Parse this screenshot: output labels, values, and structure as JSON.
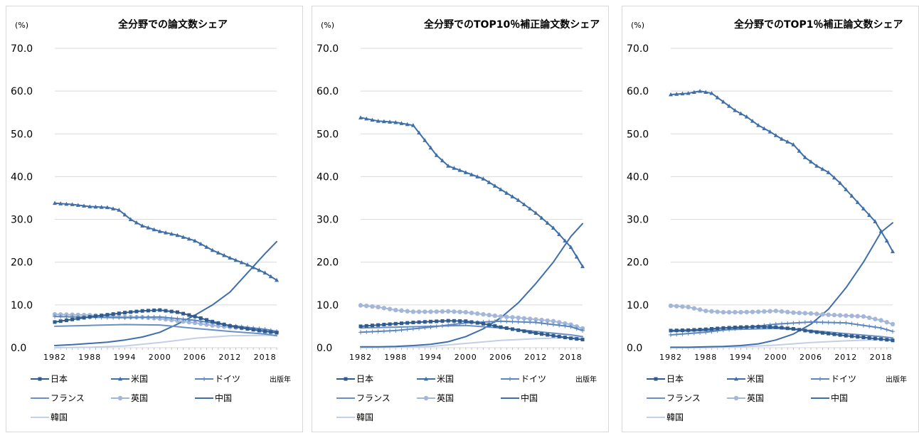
{
  "colors": {
    "japan": "#2f5b8e",
    "usa": "#3e6fa8",
    "germany": "#5a86c0",
    "france": "#6a8fc4",
    "uk": "#a4b7d8",
    "china": "#3f6eab",
    "korea": "#c3cfe6",
    "grid": "#d9d9d9"
  },
  "chart_data": [
    {
      "type": "line",
      "title": "全分野での論文数シェア",
      "unit_label": "(%)",
      "xlabel": "出版年",
      "x_ticks": [
        "1982",
        "1988",
        "1994",
        "2000",
        "2006",
        "2012",
        "2018"
      ],
      "y_ticks": [
        "70.0",
        "60.0",
        "50.0",
        "40.0",
        "30.0",
        "20.0",
        "10.0",
        "0.0"
      ],
      "xlim": [
        1982,
        2020
      ],
      "ylim": [
        0,
        70
      ],
      "legend": [
        "日本",
        "米国",
        "ドイツ",
        "フランス",
        "英国",
        "中国",
        "韓国"
      ],
      "series": [
        {
          "name": "日本",
          "key": "japan",
          "marker": "square",
          "x": [
            1982,
            1985,
            1988,
            1991,
            1994,
            1997,
            2000,
            2003,
            2006,
            2009,
            2012,
            2015,
            2018,
            2020
          ],
          "values": [
            6.0,
            6.6,
            7.2,
            7.7,
            8.2,
            8.6,
            8.8,
            8.3,
            7.3,
            6.1,
            5.1,
            4.4,
            3.8,
            3.5
          ]
        },
        {
          "name": "米国",
          "key": "usa",
          "marker": "triangle",
          "x": [
            1982,
            1985,
            1988,
            1991,
            1993,
            1995,
            1997,
            2000,
            2003,
            2006,
            2009,
            2012,
            2015,
            2018,
            2020
          ],
          "values": [
            33.8,
            33.5,
            33.0,
            32.8,
            32.2,
            30.0,
            28.5,
            27.2,
            26.3,
            25.0,
            22.8,
            21.0,
            19.4,
            17.5,
            15.8
          ]
        },
        {
          "name": "ドイツ",
          "key": "germany",
          "marker": "plus",
          "x": [
            1982,
            1988,
            1994,
            2000,
            2006,
            2012,
            2018,
            2020
          ],
          "values": [
            7.3,
            7.1,
            7.0,
            7.2,
            6.4,
            5.2,
            4.3,
            3.8
          ]
        },
        {
          "name": "フランス",
          "key": "france",
          "marker": "none",
          "x": [
            1982,
            1988,
            1994,
            2000,
            2006,
            2012,
            2018,
            2020
          ],
          "values": [
            5.0,
            5.2,
            5.4,
            5.3,
            4.5,
            3.8,
            3.2,
            2.8
          ]
        },
        {
          "name": "英国",
          "key": "uk",
          "marker": "circle",
          "x": [
            1982,
            1985,
            1988,
            1991,
            1994,
            1997,
            2000,
            2003,
            2006,
            2009,
            2012,
            2015,
            2018,
            2020
          ],
          "values": [
            7.8,
            7.7,
            7.6,
            7.4,
            7.2,
            7.1,
            6.8,
            6.3,
            5.8,
            5.2,
            4.8,
            4.5,
            4.0,
            3.6
          ]
        },
        {
          "name": "中国",
          "key": "china",
          "marker": "none",
          "x": [
            1982,
            1985,
            1988,
            1991,
            1994,
            1997,
            2000,
            2003,
            2006,
            2009,
            2012,
            2015,
            2018,
            2020
          ],
          "values": [
            0.5,
            0.7,
            1.0,
            1.3,
            1.8,
            2.5,
            3.6,
            5.5,
            7.6,
            10.0,
            13.0,
            17.5,
            22.0,
            24.8
          ]
        },
        {
          "name": "韓国",
          "key": "korea",
          "marker": "none",
          "x": [
            1982,
            1988,
            1994,
            2000,
            2006,
            2012,
            2018,
            2020
          ],
          "values": [
            0.0,
            0.1,
            0.4,
            1.2,
            2.2,
            2.8,
            2.9,
            2.9
          ]
        }
      ]
    },
    {
      "type": "line",
      "title": "全分野でのTOP10％補正論文数シェア",
      "unit_label": "(%)",
      "xlabel": "出版年",
      "x_ticks": [
        "1982",
        "1988",
        "1994",
        "2000",
        "2006",
        "2012",
        "2018"
      ],
      "y_ticks": [
        "70.0",
        "60.0",
        "50.0",
        "40.0",
        "30.0",
        "20.0",
        "10.0",
        "0.0"
      ],
      "xlim": [
        1982,
        2020
      ],
      "ylim": [
        0,
        70
      ],
      "legend": [
        "日本",
        "米国",
        "ドイツ",
        "フランス",
        "英国",
        "中国",
        "韓国"
      ],
      "series": [
        {
          "name": "日本",
          "key": "japan",
          "marker": "square",
          "x": [
            1982,
            1985,
            1988,
            1991,
            1994,
            1997,
            2000,
            2003,
            2006,
            2009,
            2012,
            2015,
            2018,
            2020
          ],
          "values": [
            5.0,
            5.3,
            5.6,
            5.9,
            6.1,
            6.3,
            6.2,
            5.6,
            4.8,
            4.1,
            3.4,
            2.8,
            2.2,
            1.9
          ]
        },
        {
          "name": "米国",
          "key": "usa",
          "marker": "triangle",
          "x": [
            1982,
            1985,
            1988,
            1991,
            1993,
            1995,
            1997,
            1999,
            2001,
            2003,
            2006,
            2009,
            2012,
            2015,
            2018,
            2020
          ],
          "values": [
            53.8,
            53.0,
            52.7,
            52.0,
            48.5,
            45.0,
            42.5,
            41.5,
            40.5,
            39.5,
            37.0,
            34.5,
            31.5,
            28.0,
            23.5,
            19.0
          ]
        },
        {
          "name": "ドイツ",
          "key": "germany",
          "marker": "plus",
          "x": [
            1982,
            1988,
            1994,
            2000,
            2006,
            2012,
            2018,
            2020
          ],
          "values": [
            3.6,
            4.0,
            4.8,
            5.8,
            6.2,
            5.9,
            4.9,
            4.0
          ]
        },
        {
          "name": "フランス",
          "key": "france",
          "marker": "none",
          "x": [
            1982,
            1988,
            1994,
            2000,
            2006,
            2012,
            2018,
            2020
          ],
          "values": [
            4.6,
            4.8,
            5.0,
            5.2,
            4.6,
            3.8,
            3.0,
            2.6
          ]
        },
        {
          "name": "英国",
          "key": "uk",
          "marker": "circle",
          "x": [
            1982,
            1985,
            1988,
            1991,
            1994,
            1997,
            2000,
            2003,
            2006,
            2009,
            2012,
            2015,
            2018,
            2020
          ],
          "values": [
            9.9,
            9.5,
            8.8,
            8.4,
            8.4,
            8.5,
            8.3,
            7.8,
            7.3,
            7.0,
            6.6,
            6.2,
            5.4,
            4.5
          ]
        },
        {
          "name": "中国",
          "key": "china",
          "marker": "none",
          "x": [
            1982,
            1985,
            1988,
            1991,
            1994,
            1997,
            2000,
            2003,
            2006,
            2009,
            2012,
            2015,
            2018,
            2020
          ],
          "values": [
            0.2,
            0.2,
            0.3,
            0.5,
            0.8,
            1.4,
            2.6,
            4.4,
            7.0,
            10.5,
            15.0,
            20.0,
            26.0,
            29.0
          ]
        },
        {
          "name": "韓国",
          "key": "korea",
          "marker": "none",
          "x": [
            1982,
            1988,
            1994,
            2000,
            2006,
            2012,
            2018,
            2020
          ],
          "values": [
            0.0,
            0.1,
            0.3,
            1.0,
            1.7,
            2.1,
            2.4,
            2.5
          ]
        }
      ]
    },
    {
      "type": "line",
      "title": "全分野でのTOP1％補正論文数シェア",
      "unit_label": "(%)",
      "xlabel": "出版年",
      "x_ticks": [
        "1982",
        "1988",
        "1994",
        "2000",
        "2006",
        "2012",
        "2018"
      ],
      "y_ticks": [
        "70.0",
        "60.0",
        "50.0",
        "40.0",
        "30.0",
        "20.0",
        "10.0",
        "0.0"
      ],
      "xlim": [
        1982,
        2020
      ],
      "ylim": [
        0,
        70
      ],
      "legend": [
        "日本",
        "米国",
        "ドイツ",
        "フランス",
        "英国",
        "中国",
        "韓国"
      ],
      "series": [
        {
          "name": "日本",
          "key": "japan",
          "marker": "square",
          "x": [
            1982,
            1985,
            1988,
            1991,
            1994,
            1997,
            2000,
            2003,
            2006,
            2009,
            2012,
            2015,
            2018,
            2020
          ],
          "values": [
            4.0,
            4.1,
            4.3,
            4.6,
            4.8,
            4.9,
            4.8,
            4.4,
            3.8,
            3.3,
            2.8,
            2.4,
            2.0,
            1.7
          ]
        },
        {
          "name": "米国",
          "key": "usa",
          "marker": "triangle",
          "x": [
            1982,
            1985,
            1987,
            1989,
            1991,
            1993,
            1995,
            1997,
            1999,
            2001,
            2003,
            2005,
            2007,
            2009,
            2011,
            2013,
            2015,
            2017,
            2019,
            2020
          ],
          "values": [
            59.2,
            59.5,
            60.0,
            59.5,
            57.5,
            55.5,
            54.0,
            52.0,
            50.5,
            48.8,
            47.5,
            44.5,
            42.5,
            41.0,
            38.5,
            35.5,
            32.5,
            29.5,
            25.0,
            22.5
          ]
        },
        {
          "name": "ドイツ",
          "key": "germany",
          "marker": "plus",
          "x": [
            1982,
            1988,
            1994,
            2000,
            2006,
            2012,
            2018,
            2020
          ],
          "values": [
            3.0,
            3.6,
            4.6,
            5.5,
            6.0,
            5.8,
            4.6,
            3.8
          ]
        },
        {
          "name": "フランス",
          "key": "france",
          "marker": "none",
          "x": [
            1982,
            1988,
            1994,
            2000,
            2006,
            2012,
            2018,
            2020
          ],
          "values": [
            3.8,
            4.0,
            4.3,
            4.5,
            4.0,
            3.3,
            2.6,
            2.3
          ]
        },
        {
          "name": "英国",
          "key": "uk",
          "marker": "circle",
          "x": [
            1982,
            1985,
            1988,
            1991,
            1994,
            1997,
            2000,
            2003,
            2006,
            2009,
            2012,
            2015,
            2018,
            2020
          ],
          "values": [
            9.8,
            9.5,
            8.6,
            8.3,
            8.3,
            8.4,
            8.6,
            8.2,
            8.0,
            7.7,
            7.5,
            7.3,
            6.4,
            5.5
          ]
        },
        {
          "name": "中国",
          "key": "china",
          "marker": "none",
          "x": [
            1982,
            1985,
            1988,
            1991,
            1994,
            1997,
            2000,
            2003,
            2006,
            2009,
            2012,
            2015,
            2018,
            2020
          ],
          "values": [
            0.1,
            0.1,
            0.2,
            0.3,
            0.5,
            0.9,
            1.8,
            3.2,
            5.5,
            9.0,
            14.0,
            20.0,
            27.0,
            29.2
          ]
        },
        {
          "name": "韓国",
          "key": "korea",
          "marker": "none",
          "x": [
            1982,
            1988,
            1994,
            2000,
            2006,
            2012,
            2018,
            2020
          ],
          "values": [
            0.0,
            0.0,
            0.2,
            0.6,
            1.2,
            1.6,
            1.9,
            2.0
          ]
        }
      ]
    }
  ]
}
